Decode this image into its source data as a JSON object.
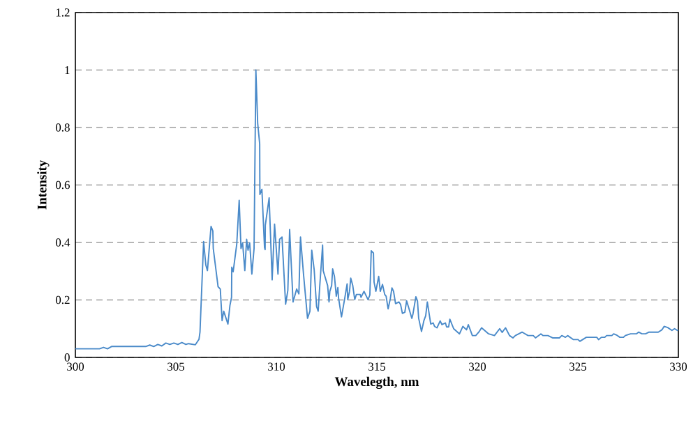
{
  "chart_data": {
    "type": "line",
    "xlabel": "Wavelegth, nm",
    "ylabel": "Intensity",
    "xlim": [
      300,
      330
    ],
    "ylim": [
      0,
      1.2
    ],
    "xticks": [
      300,
      305,
      310,
      315,
      320,
      325,
      330
    ],
    "yticks": [
      0,
      0.2,
      0.4,
      0.6,
      0.8,
      1,
      1.2
    ],
    "grid": "y",
    "series": [
      {
        "color": "#4a8ac9",
        "x": [
          300,
          301.2,
          301.4,
          301.6,
          301.8,
          302.5,
          303.5,
          303.7,
          303.9,
          304.1,
          304.3,
          304.5,
          304.7,
          304.9,
          305.1,
          305.3,
          305.5,
          305.63,
          305.97,
          306.15,
          306.2,
          306.38,
          306.49,
          306.57,
          306.75,
          306.84,
          306.86,
          307.1,
          307.21,
          307.3,
          307.38,
          307.59,
          307.69,
          307.77,
          307.78,
          307.85,
          308.03,
          308.15,
          308.24,
          308.32,
          308.43,
          308.52,
          308.59,
          308.67,
          308.78,
          308.89,
          308.98,
          309.07,
          309.17,
          309.18,
          309.28,
          309.41,
          309.44,
          309.45,
          309.64,
          309.79,
          309.91,
          310.08,
          310.16,
          310.28,
          310.46,
          310.57,
          310.66,
          310.72,
          310.83,
          311.01,
          311.12,
          311.2,
          311.35,
          311.55,
          311.67,
          311.76,
          311.88,
          312.0,
          312.08,
          312.16,
          312.3,
          312.33,
          312.55,
          312.62,
          312.66,
          312.75,
          312.8,
          312.89,
          312.98,
          313.06,
          313.09,
          313.24,
          313.4,
          313.52,
          313.55,
          313.64,
          313.7,
          313.8,
          313.9,
          313.98,
          314.17,
          314.21,
          314.36,
          314.56,
          314.65,
          314.72,
          314.83,
          314.86,
          314.95,
          315.09,
          315.17,
          315.28,
          315.39,
          315.46,
          315.56,
          315.67,
          315.75,
          315.83,
          315.93,
          316.1,
          316.18,
          316.27,
          316.39,
          316.48,
          316.6,
          316.74,
          316.79,
          316.94,
          317.02,
          317.08,
          317.22,
          317.34,
          317.43,
          317.51,
          317.68,
          317.8,
          317.87,
          317.99,
          318.15,
          318.24,
          318.41,
          318.47,
          318.57,
          318.63,
          318.82,
          319.11,
          319.28,
          319.46,
          319.55,
          319.75,
          319.92,
          320.07,
          320.21,
          320.56,
          320.85,
          321.11,
          321.23,
          321.4,
          321.6,
          321.77,
          321.89,
          322.23,
          322.52,
          322.78,
          322.89,
          323.16,
          323.27,
          323.51,
          323.74,
          324.08,
          324.2,
          324.38,
          324.49,
          324.78,
          325.01,
          325.1,
          325.42,
          325.94,
          326.03,
          326.17,
          326.34,
          326.43,
          326.69,
          326.78,
          326.92,
          327.09,
          327.27,
          327.36,
          327.62,
          327.91,
          328.02,
          328.19,
          328.37,
          328.54,
          329.0,
          329.18,
          329.29,
          329.47,
          329.68,
          329.81,
          329.95,
          330
        ],
        "values": [
          0.03,
          0.03,
          0.035,
          0.03,
          0.038,
          0.038,
          0.038,
          0.043,
          0.038,
          0.045,
          0.04,
          0.05,
          0.045,
          0.05,
          0.045,
          0.052,
          0.045,
          0.048,
          0.044,
          0.063,
          0.088,
          0.403,
          0.322,
          0.302,
          0.456,
          0.44,
          0.379,
          0.246,
          0.238,
          0.128,
          0.161,
          0.116,
          0.181,
          0.209,
          0.314,
          0.298,
          0.395,
          0.547,
          0.379,
          0.399,
          0.302,
          0.411,
          0.373,
          0.399,
          0.29,
          0.379,
          1.0,
          0.815,
          0.743,
          0.567,
          0.585,
          0.383,
          0.375,
          0.46,
          0.555,
          0.27,
          0.464,
          0.29,
          0.411,
          0.419,
          0.185,
          0.233,
          0.445,
          0.355,
          0.193,
          0.238,
          0.221,
          0.419,
          0.29,
          0.136,
          0.161,
          0.373,
          0.306,
          0.177,
          0.161,
          0.25,
          0.391,
          0.302,
          0.25,
          0.193,
          0.23,
          0.25,
          0.308,
          0.282,
          0.213,
          0.243,
          0.209,
          0.141,
          0.205,
          0.256,
          0.201,
          0.23,
          0.276,
          0.25,
          0.201,
          0.219,
          0.219,
          0.209,
          0.23,
          0.201,
          0.217,
          0.371,
          0.363,
          0.262,
          0.23,
          0.282,
          0.23,
          0.254,
          0.219,
          0.213,
          0.169,
          0.205,
          0.242,
          0.23,
          0.187,
          0.193,
          0.184,
          0.153,
          0.157,
          0.197,
          0.169,
          0.136,
          0.149,
          0.211,
          0.197,
          0.136,
          0.09,
          0.128,
          0.145,
          0.193,
          0.116,
          0.12,
          0.108,
          0.103,
          0.127,
          0.114,
          0.12,
          0.106,
          0.106,
          0.133,
          0.1,
          0.082,
          0.108,
          0.096,
          0.114,
          0.076,
          0.076,
          0.088,
          0.103,
          0.082,
          0.076,
          0.1,
          0.087,
          0.103,
          0.076,
          0.068,
          0.076,
          0.088,
          0.076,
          0.076,
          0.068,
          0.082,
          0.076,
          0.076,
          0.068,
          0.068,
          0.076,
          0.07,
          0.076,
          0.062,
          0.062,
          0.056,
          0.07,
          0.07,
          0.062,
          0.07,
          0.07,
          0.076,
          0.076,
          0.082,
          0.078,
          0.07,
          0.07,
          0.076,
          0.082,
          0.082,
          0.088,
          0.082,
          0.082,
          0.088,
          0.088,
          0.096,
          0.108,
          0.104,
          0.094,
          0.1,
          0.094,
          0.096
        ]
      }
    ]
  }
}
